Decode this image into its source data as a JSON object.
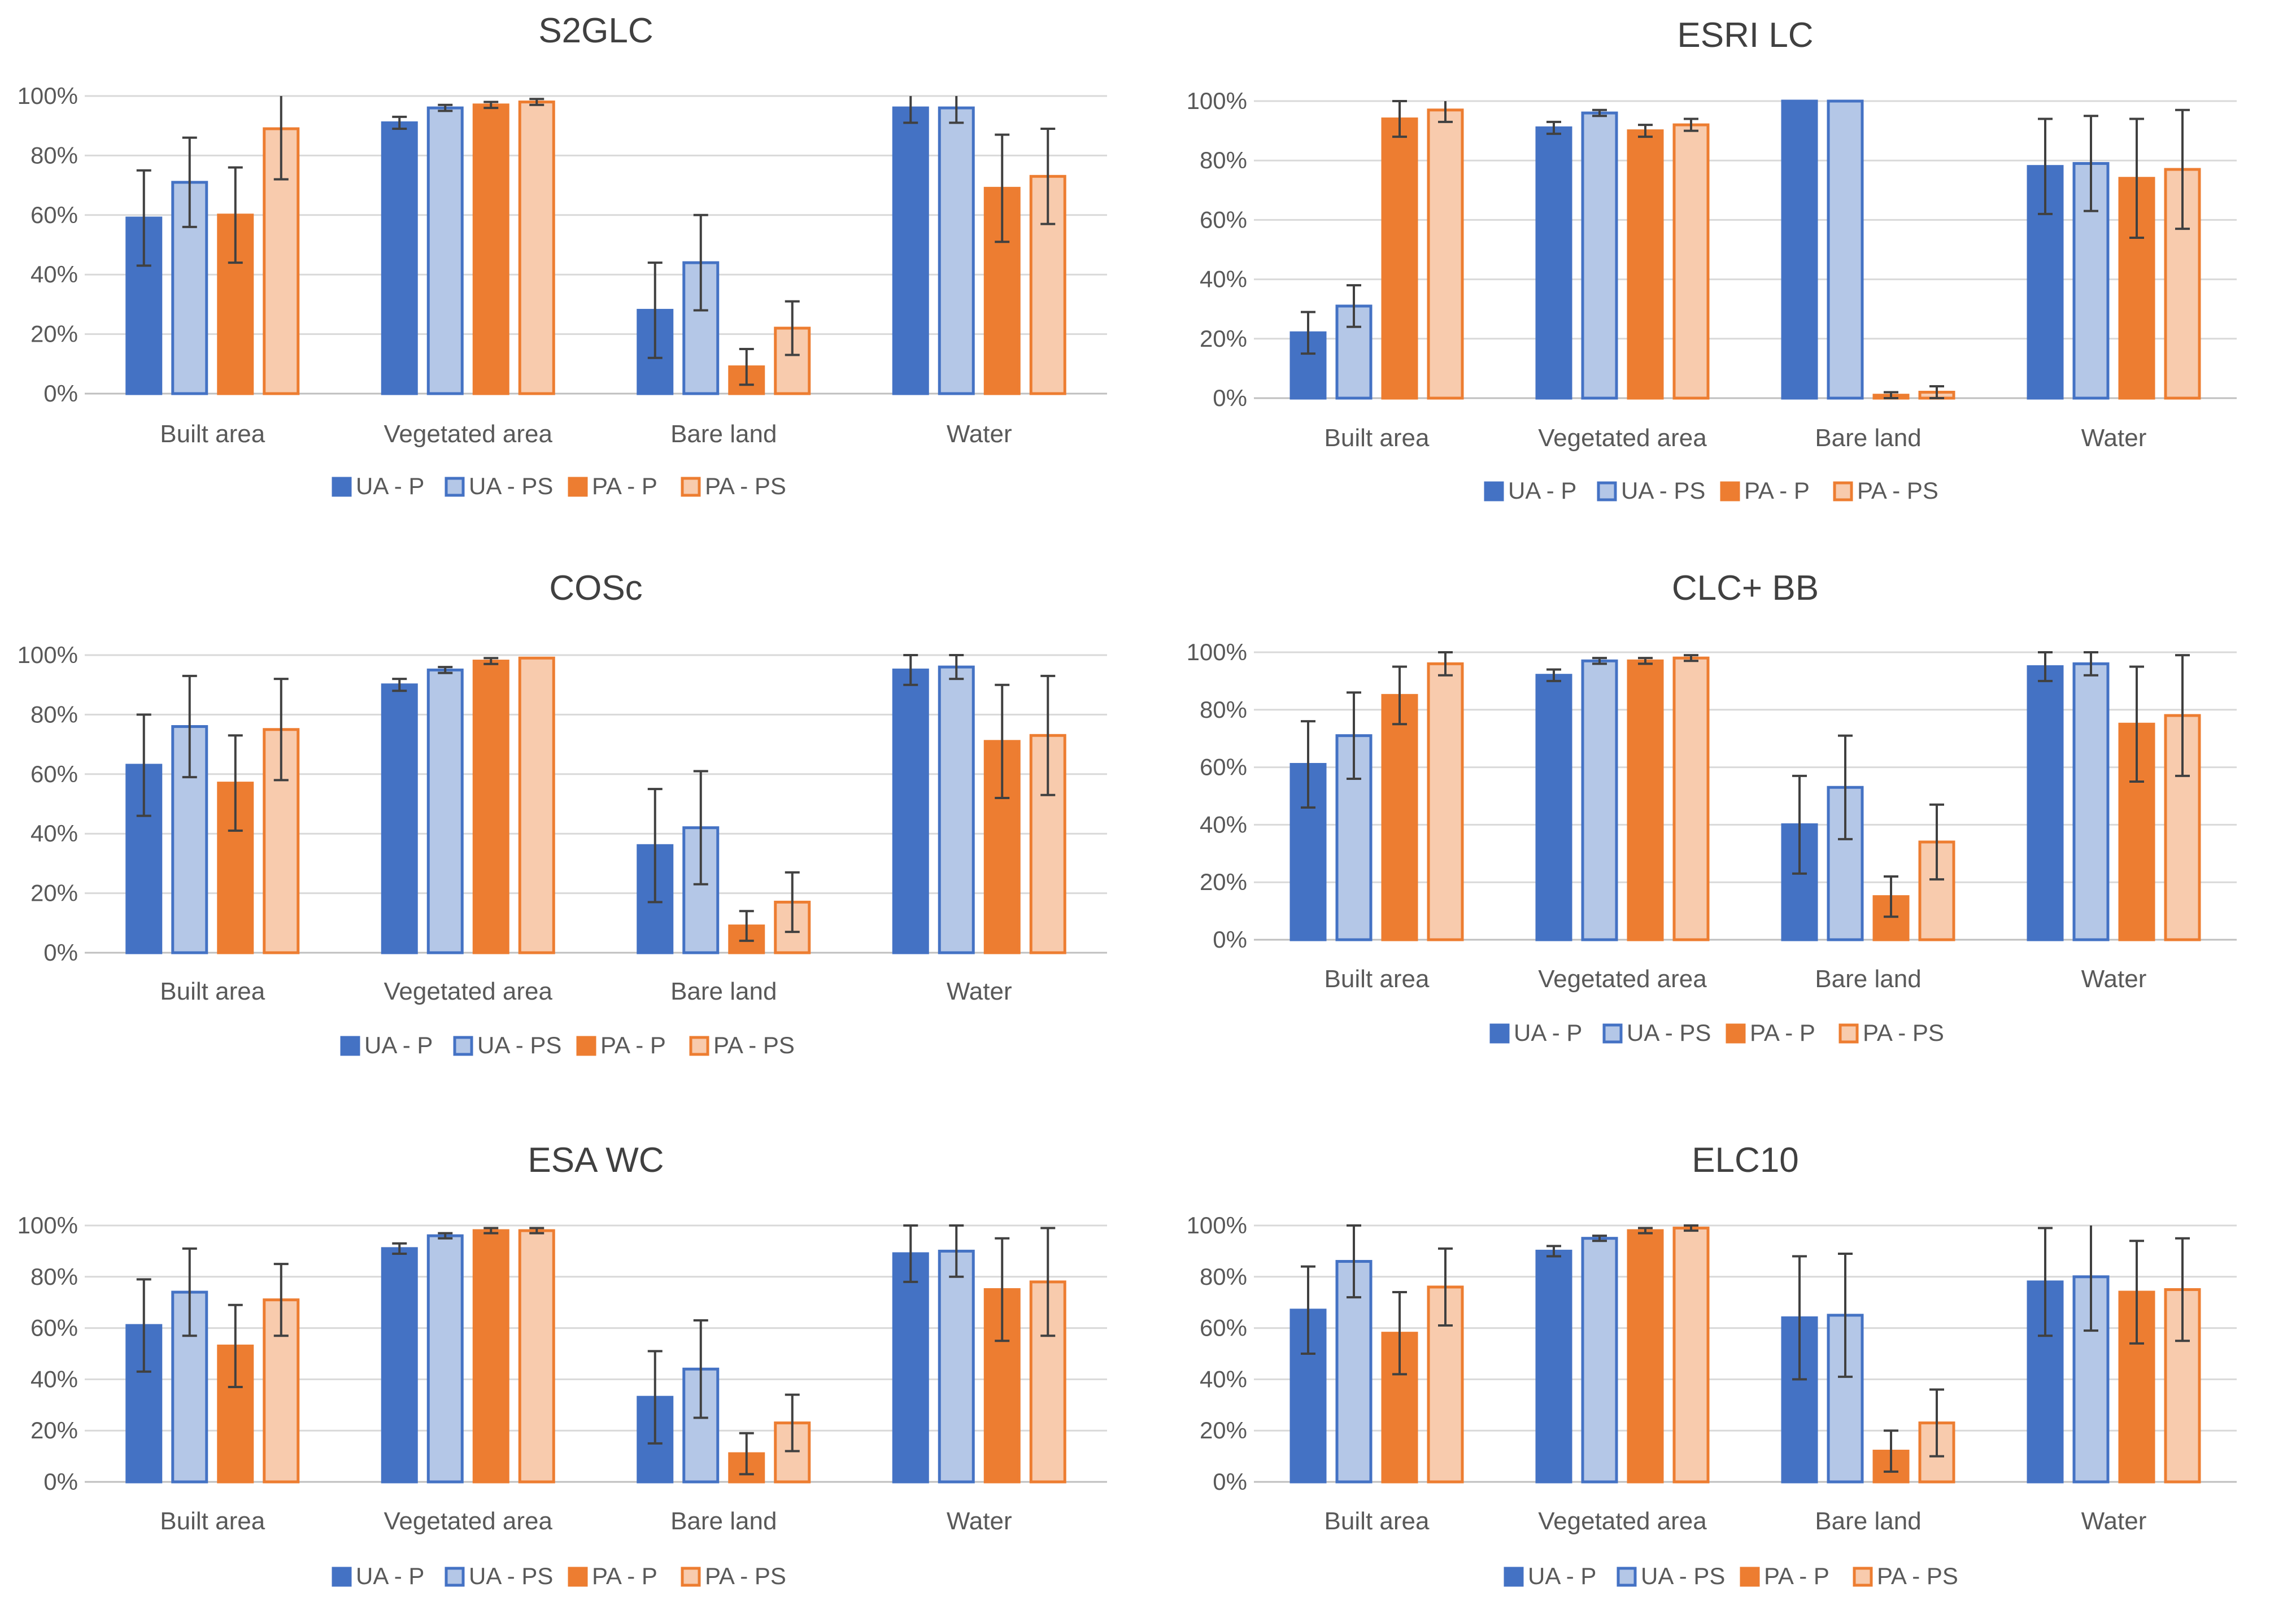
{
  "series_style": [
    {
      "name": "UA - P",
      "fill": "#4472C4",
      "stroke": "#4472C4"
    },
    {
      "name": "UA - PS",
      "fill": "#B4C7E7",
      "stroke": "#4472C4"
    },
    {
      "name": "PA - P",
      "fill": "#ED7D31",
      "stroke": "#ED7D31"
    },
    {
      "name": "PA - PS",
      "fill": "#F8CBAD",
      "stroke": "#ED7D31"
    }
  ],
  "colors": {
    "axis_text": "#595959",
    "title_text": "#404040",
    "grid": "#D9D9D9",
    "error_bar": "#404040"
  },
  "chart_data": [
    {
      "type": "bar",
      "title": "S2GLC",
      "categories": [
        "Built area",
        "Vegetated area",
        "Bare land",
        "Water"
      ],
      "ylim": [
        0,
        100
      ],
      "yticks": [
        "0%",
        "20%",
        "40%",
        "60%",
        "80%",
        "100%"
      ],
      "series": [
        {
          "name": "UA - P",
          "values": [
            59,
            91,
            28,
            96
          ],
          "errors": [
            16,
            2,
            16,
            5
          ]
        },
        {
          "name": "UA - PS",
          "values": [
            71,
            96,
            44,
            96
          ],
          "errors": [
            15,
            1,
            16,
            5
          ]
        },
        {
          "name": "PA - P",
          "values": [
            60,
            97,
            9,
            69
          ],
          "errors": [
            16,
            1,
            6,
            18
          ]
        },
        {
          "name": "PA - PS",
          "values": [
            89,
            98,
            22,
            73
          ],
          "errors": [
            17,
            1,
            9,
            16
          ]
        }
      ]
    },
    {
      "type": "bar",
      "title": "ESRI LC",
      "categories": [
        "Built area",
        "Vegetated area",
        "Bare land",
        "Water"
      ],
      "ylim": [
        0,
        100
      ],
      "yticks": [
        "0%",
        "20%",
        "40%",
        "60%",
        "80%",
        "100%"
      ],
      "series": [
        {
          "name": "UA - P",
          "values": [
            22,
            91,
            100,
            78
          ],
          "errors": [
            7,
            2,
            0,
            16
          ]
        },
        {
          "name": "UA - PS",
          "values": [
            31,
            96,
            100,
            79
          ],
          "errors": [
            7,
            1,
            0,
            16
          ]
        },
        {
          "name": "PA - P",
          "values": [
            94,
            90,
            1,
            74
          ],
          "errors": [
            6,
            2,
            1,
            20
          ]
        },
        {
          "name": "PA - PS",
          "values": [
            97,
            92,
            2,
            77
          ],
          "errors": [
            4,
            2,
            2,
            20
          ]
        }
      ]
    },
    {
      "type": "bar",
      "title": "COSc",
      "categories": [
        "Built area",
        "Vegetated area",
        "Bare land",
        "Water"
      ],
      "ylim": [
        0,
        100
      ],
      "yticks": [
        "0%",
        "20%",
        "40%",
        "60%",
        "80%",
        "100%"
      ],
      "series": [
        {
          "name": "UA - P",
          "values": [
            63,
            90,
            36,
            95
          ],
          "errors": [
            17,
            2,
            19,
            5
          ]
        },
        {
          "name": "UA - PS",
          "values": [
            76,
            95,
            42,
            96
          ],
          "errors": [
            17,
            1,
            19,
            4
          ]
        },
        {
          "name": "PA - P",
          "values": [
            57,
            98,
            9,
            71
          ],
          "errors": [
            16,
            1,
            5,
            19
          ]
        },
        {
          "name": "PA - PS",
          "values": [
            75,
            99,
            17,
            73
          ],
          "errors": [
            17,
            0,
            10,
            20
          ]
        }
      ]
    },
    {
      "type": "bar",
      "title": "CLC+ BB",
      "categories": [
        "Built area",
        "Vegetated area",
        "Bare land",
        "Water"
      ],
      "ylim": [
        0,
        100
      ],
      "yticks": [
        "0%",
        "20%",
        "40%",
        "60%",
        "80%",
        "100%"
      ],
      "series": [
        {
          "name": "UA - P",
          "values": [
            61,
            92,
            40,
            95
          ],
          "errors": [
            15,
            2,
            17,
            5
          ]
        },
        {
          "name": "UA - PS",
          "values": [
            71,
            97,
            53,
            96
          ],
          "errors": [
            15,
            1,
            18,
            4
          ]
        },
        {
          "name": "PA - P",
          "values": [
            85,
            97,
            15,
            75
          ],
          "errors": [
            10,
            1,
            7,
            20
          ]
        },
        {
          "name": "PA - PS",
          "values": [
            96,
            98,
            34,
            78
          ],
          "errors": [
            4,
            1,
            13,
            21
          ]
        }
      ]
    },
    {
      "type": "bar",
      "title": "ESA WC",
      "categories": [
        "Built area",
        "Vegetated area",
        "Bare land",
        "Water"
      ],
      "ylim": [
        0,
        100
      ],
      "yticks": [
        "0%",
        "20%",
        "40%",
        "60%",
        "80%",
        "100%"
      ],
      "series": [
        {
          "name": "UA - P",
          "values": [
            61,
            91,
            33,
            89
          ],
          "errors": [
            18,
            2,
            18,
            11
          ]
        },
        {
          "name": "UA - PS",
          "values": [
            74,
            96,
            44,
            90
          ],
          "errors": [
            17,
            1,
            19,
            10
          ]
        },
        {
          "name": "PA - P",
          "values": [
            53,
            98,
            11,
            75
          ],
          "errors": [
            16,
            1,
            8,
            20
          ]
        },
        {
          "name": "PA - PS",
          "values": [
            71,
            98,
            23,
            78
          ],
          "errors": [
            14,
            1,
            11,
            21
          ]
        }
      ]
    },
    {
      "type": "bar",
      "title": "ELC10",
      "categories": [
        "Built area",
        "Vegetated area",
        "Bare land",
        "Water"
      ],
      "ylim": [
        0,
        100
      ],
      "yticks": [
        "0%",
        "20%",
        "40%",
        "60%",
        "80%",
        "100%"
      ],
      "series": [
        {
          "name": "UA - P",
          "values": [
            67,
            90,
            64,
            78
          ],
          "errors": [
            17,
            2,
            24,
            21
          ]
        },
        {
          "name": "UA - PS",
          "values": [
            86,
            95,
            65,
            80
          ],
          "errors": [
            14,
            1,
            24,
            21
          ]
        },
        {
          "name": "PA - P",
          "values": [
            58,
            98,
            12,
            74
          ],
          "errors": [
            16,
            1,
            8,
            20
          ]
        },
        {
          "name": "PA - PS",
          "values": [
            76,
            99,
            23,
            75
          ],
          "errors": [
            15,
            1,
            13,
            20
          ]
        }
      ]
    }
  ]
}
